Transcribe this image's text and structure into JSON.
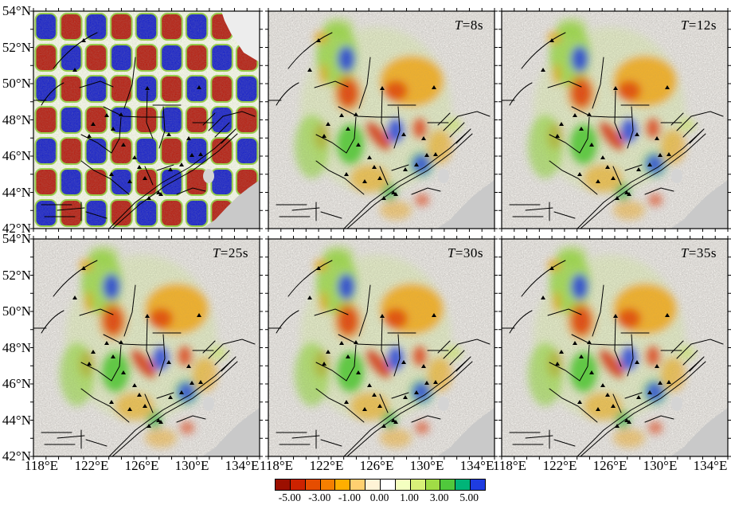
{
  "axes": {
    "lat_labels": [
      "54°N",
      "52°N",
      "50°N",
      "48°N",
      "46°N",
      "44°N",
      "42°N"
    ],
    "lon_labels": [
      "118°E",
      "122°E",
      "126°E",
      "130°E",
      "134°E"
    ]
  },
  "panels": [
    {
      "name": "checkerboard-input-model",
      "label_t": "",
      "label_rest": ""
    },
    {
      "name": "period-8s",
      "label_t": "T",
      "label_rest": "=8s"
    },
    {
      "name": "period-12s",
      "label_t": "T",
      "label_rest": "=12s"
    },
    {
      "name": "period-25s",
      "label_t": "T",
      "label_rest": "=25s"
    },
    {
      "name": "period-30s",
      "label_t": "T",
      "label_rest": "=30s"
    },
    {
      "name": "period-35s",
      "label_t": "T",
      "label_rest": "=35s"
    }
  ],
  "colorbar": {
    "tick_labels": [
      "-5.00",
      "-3.00",
      "-1.00",
      "0.00",
      "1.00",
      "3.00",
      "5.00"
    ],
    "segment_colors": [
      "#9c0f00",
      "#cc2200",
      "#e64d00",
      "#f57f00",
      "#ffae00",
      "#ffd070",
      "#fff3d6",
      "#ffffff",
      "#f4ffc0",
      "#d8f078",
      "#a0dc46",
      "#50c83c",
      "#00b478",
      "#1e3ce1"
    ]
  },
  "map_palette": {
    "slow_anomaly_red": "#cc2200",
    "fast_anomaly_blue": "#2038d8",
    "neutral_green": "#7dc82d",
    "sea_gray": "#c9c9c9"
  },
  "chart_data": [
    {
      "type": "heatmap",
      "title": "checkerboard resolution test",
      "x_range": [
        "118°E",
        "136°E"
      ],
      "y_range": [
        "42°N",
        "54°N"
      ],
      "value_range": [
        -5,
        5
      ],
      "legend_position": "bottom"
    },
    {
      "type": "heatmap",
      "title": "T=8s phase velocity perturbation",
      "x_range": [
        "118°E",
        "136°E"
      ],
      "y_range": [
        "42°N",
        "54°N"
      ],
      "value_range": [
        -5,
        5
      ]
    },
    {
      "type": "heatmap",
      "title": "T=12s phase velocity perturbation",
      "x_range": [
        "118°E",
        "136°E"
      ],
      "y_range": [
        "42°N",
        "54°N"
      ],
      "value_range": [
        -5,
        5
      ]
    },
    {
      "type": "heatmap",
      "title": "T=25s phase velocity perturbation",
      "x_range": [
        "118°E",
        "136°E"
      ],
      "y_range": [
        "42°N",
        "54°N"
      ],
      "value_range": [
        -5,
        5
      ]
    },
    {
      "type": "heatmap",
      "title": "T=30s phase velocity perturbation",
      "x_range": [
        "118°E",
        "136°E"
      ],
      "y_range": [
        "42°N",
        "54°N"
      ],
      "value_range": [
        -5,
        5
      ]
    },
    {
      "type": "heatmap",
      "title": "T=35s phase velocity perturbation",
      "x_range": [
        "118°E",
        "136°E"
      ],
      "y_range": [
        "42°N",
        "54°N"
      ],
      "value_range": [
        -5,
        5
      ]
    }
  ]
}
